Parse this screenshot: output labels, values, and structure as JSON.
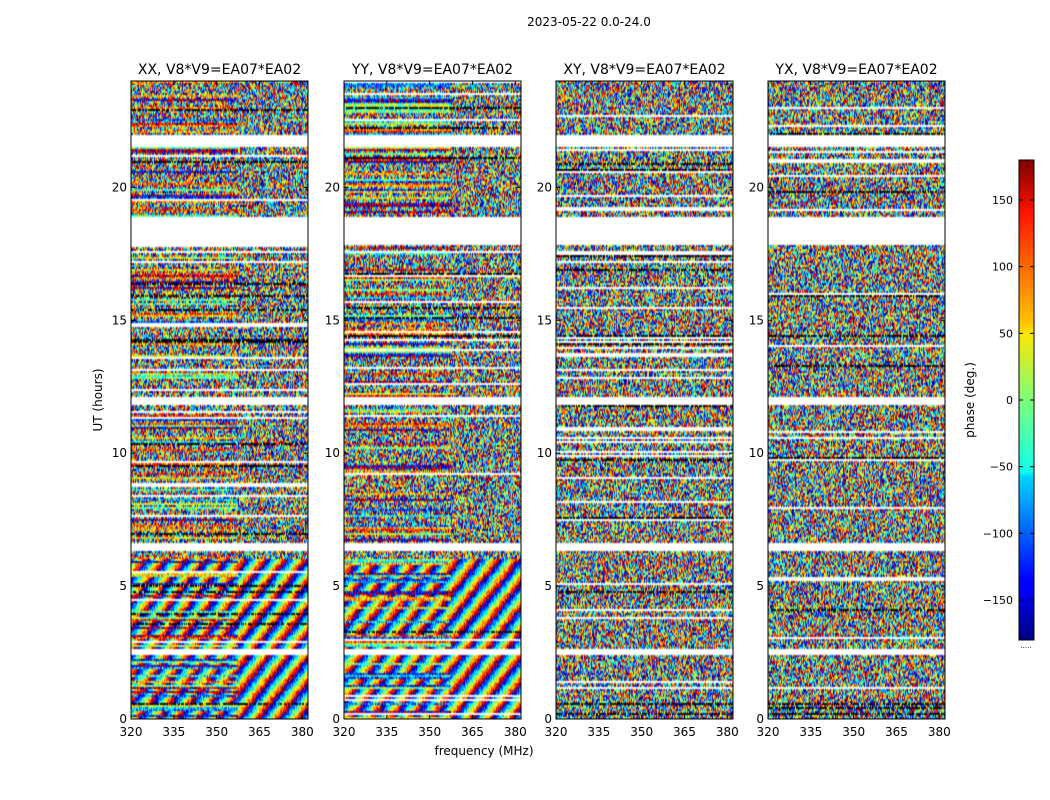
{
  "chart_data": {
    "type": "heatmap",
    "title": "2023-05-22 0.0-24.0",
    "xlabel": "frequency (MHz)",
    "ylabel": "UT (hours)",
    "xlim": [
      320,
      382
    ],
    "ylim": [
      0,
      24
    ],
    "x_ticks": [
      320,
      335,
      350,
      365,
      380
    ],
    "y_ticks": [
      0,
      5,
      10,
      15,
      20
    ],
    "panels": [
      {
        "title": "XX, V8*V9=EA07*EA02"
      },
      {
        "title": "YY, V8*V9=EA07*EA02"
      },
      {
        "title": "XY, V8*V9=EA07*EA02"
      },
      {
        "title": "YX, V8*V9=EA07*EA02"
      }
    ],
    "colorbar": {
      "label": "phase (deg.)",
      "range": [
        -180,
        180
      ],
      "ticks": [
        -150,
        -100,
        -50,
        0,
        50,
        100,
        150
      ],
      "colormap": "jet",
      "footer": "....."
    },
    "no_data_gaps_ut": [
      [
        2.4,
        2.6
      ],
      [
        6.3,
        6.6
      ],
      [
        11.8,
        12.1
      ],
      [
        17.8,
        18.9
      ],
      [
        21.5,
        22.0
      ]
    ]
  }
}
